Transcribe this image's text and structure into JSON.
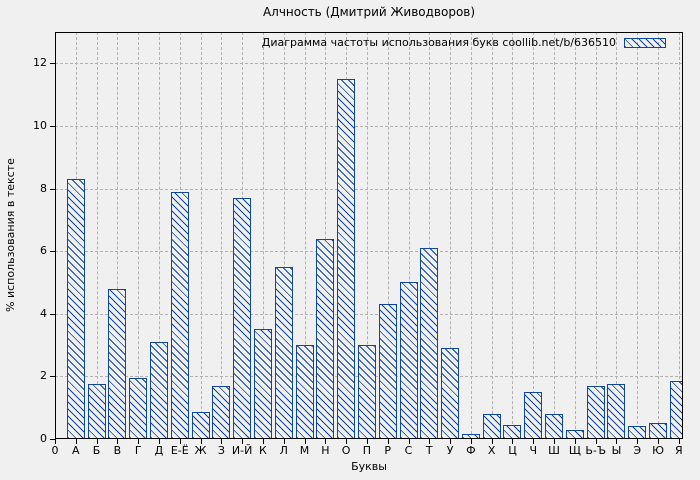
{
  "page": {
    "background": "#f0f0f0"
  },
  "chart_data": {
    "type": "bar",
    "title": "Алчность (Дмитрий Живодворов)",
    "legend": "Диаграмма частоты использования букв coollib.net/b/636510",
    "legend_position": "top-right",
    "xlabel": "Буквы",
    "ylabel": "% использования в тексте",
    "categories": [
      "А",
      "Б",
      "В",
      "Г",
      "Д",
      "Е-Ё",
      "Ж",
      "З",
      "И-Й",
      "К",
      "Л",
      "М",
      "Н",
      "О",
      "П",
      "Р",
      "С",
      "Т",
      "У",
      "Ф",
      "Х",
      "Ц",
      "Ч",
      "Ш",
      "Щ",
      "Ь-Ъ",
      "Ы",
      "Э",
      "Ю",
      "Я"
    ],
    "values": [
      8.3,
      1.75,
      4.8,
      1.95,
      3.1,
      7.9,
      0.85,
      1.7,
      7.7,
      3.5,
      5.5,
      3.0,
      6.4,
      11.5,
      3.0,
      4.3,
      5.0,
      6.1,
      2.9,
      0.15,
      0.8,
      0.45,
      1.5,
      0.8,
      0.3,
      1.7,
      1.75,
      0.4,
      0.5,
      1.85
    ],
    "x_tick_labels": [
      "0",
      "А",
      "Б",
      "В",
      "Г",
      "Д",
      "Е-Ё",
      "Ж",
      "З",
      "И-Й",
      "К",
      "Л",
      "М",
      "Н",
      "О",
      "П",
      "Р",
      "С",
      "Т",
      "У",
      "Ф",
      "Х",
      "Ц",
      "Ч",
      "Ш",
      "Щ",
      "Ь-Ъ",
      "Ы",
      "Э",
      "Ю",
      "Я"
    ],
    "y_ticks": [
      0,
      2,
      4,
      6,
      8,
      10,
      12
    ],
    "ylim": [
      0,
      13
    ],
    "xlim": [
      0,
      30.2
    ],
    "grid": true,
    "bar_style": "hatched",
    "colors": {
      "bar": "#0f46a0",
      "grid": "#b0b0b0",
      "background": "#f0f0f0",
      "border": "#000000"
    }
  }
}
